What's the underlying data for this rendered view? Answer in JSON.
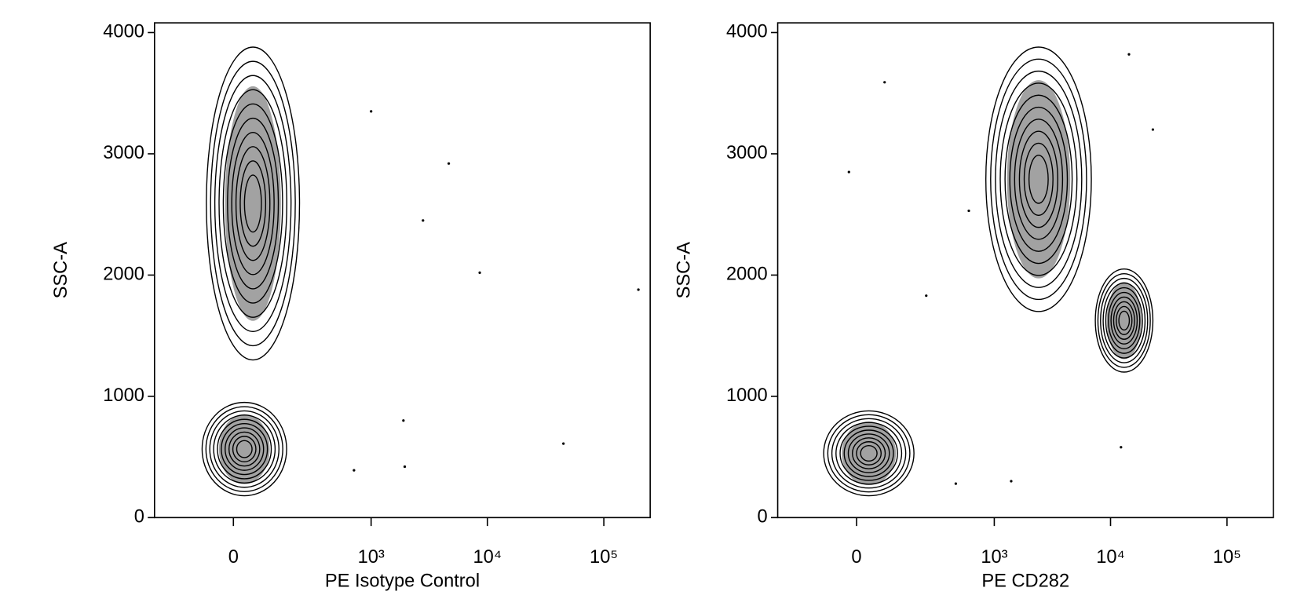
{
  "chart_data": [
    {
      "type": "contour",
      "xlabel": "PE Isotype Control",
      "ylabel": "SSC-A",
      "xscale": "biexponential",
      "xlim": [
        -300,
        250000
      ],
      "xticks": [
        0,
        {
          "value": 1000,
          "label": "10³"
        },
        {
          "value": 10000,
          "label": "10⁴"
        },
        {
          "value": 100000,
          "label": "10⁵"
        }
      ],
      "ylim": [
        0,
        4080
      ],
      "yticks": [
        0,
        1000,
        2000,
        3000,
        4000
      ],
      "color": "#000000",
      "populations": [
        {
          "xrange": [
            -74,
            226
          ],
          "yrange": [
            1300,
            3880
          ]
        },
        {
          "xrange": [
            -87,
            166
          ],
          "yrange": [
            180,
            950
          ]
        }
      ],
      "points": {
        "x": [
          1000,
          4660,
          8600,
          198000,
          45000,
          1950,
          1900,
          2800,
          710
        ],
        "y": [
          3350,
          2920,
          2020,
          1880,
          610,
          420,
          800,
          2450,
          390
        ]
      }
    },
    {
      "type": "contour",
      "xlabel": "PE CD282",
      "ylabel": "SSC-A",
      "xscale": "biexponential",
      "xlim": [
        -300,
        250000
      ],
      "xticks": [
        0,
        {
          "value": 1000,
          "label": "10³"
        },
        {
          "value": 10000,
          "label": "10⁴"
        },
        {
          "value": 100000,
          "label": "10⁵"
        }
      ],
      "ylim": [
        0,
        4080
      ],
      "yticks": [
        0,
        1000,
        2000,
        3000,
        4000
      ],
      "color": "#000000",
      "populations": [
        {
          "xrange": [
            845,
            6840
          ],
          "yrange": [
            1700,
            3880
          ]
        },
        {
          "xrange": [
            7400,
            23100
          ],
          "yrange": [
            1200,
            2050
          ]
        },
        {
          "xrange": [
            -92,
            184
          ],
          "yrange": [
            180,
            880
          ]
        }
      ],
      "points": {
        "x": [
          23100,
          14400,
          77,
          -20,
          460,
          1400,
          12300,
          245,
          600
        ],
        "y": [
          3200,
          3820,
          3590,
          2850,
          280,
          300,
          580,
          1830,
          2530
        ]
      }
    }
  ]
}
